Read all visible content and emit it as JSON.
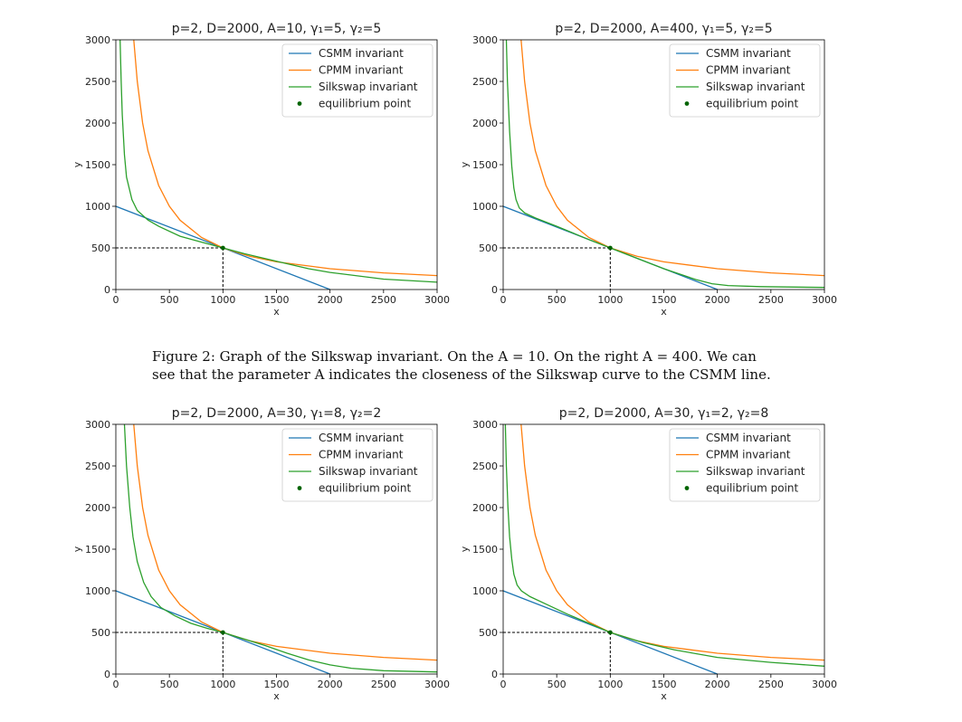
{
  "caption": {
    "line1": "Figure 2: Graph of the Silkswap invariant. On the A = 10. On the right A = 400. We can",
    "line2": "see that the parameter A indicates the closeness of the Silkswap curve to the CSMM line."
  },
  "colors": {
    "csmm": "#1f77b4",
    "cpmm": "#ff7f0e",
    "silkswap": "#2ca02c",
    "equilibrium": "#006400"
  },
  "chart_data": [
    {
      "type": "line",
      "title": "p=2, D=2000, A=10, γ₁=5, γ₂=5",
      "xlabel": "x",
      "ylabel": "y",
      "xlim": [
        0,
        3000
      ],
      "ylim": [
        0,
        3000
      ],
      "xticks": [
        "0",
        "500",
        "1000",
        "1500",
        "2000",
        "2500",
        "3000"
      ],
      "yticks": [
        "0",
        "500",
        "1000",
        "1500",
        "2000",
        "2500",
        "3000"
      ],
      "legend": {
        "placement": "top-right",
        "entries": [
          "CSMM invariant",
          "CPMM invariant",
          "Silkswap invariant",
          "equilibrium point"
        ]
      },
      "equilibrium": {
        "x": 1000,
        "y": 500
      },
      "series": [
        {
          "name": "CSMM invariant",
          "x": [
            0,
            2000
          ],
          "y": [
            1000,
            0
          ]
        },
        {
          "name": "CPMM invariant",
          "x": [
            167,
            200,
            250,
            300,
            400,
            500,
            600,
            800,
            1000,
            1250,
            1500,
            2000,
            2500,
            3000
          ],
          "y": [
            3000,
            2500,
            2000,
            1667,
            1250,
            1000,
            833,
            625,
            500,
            400,
            333,
            250,
            200,
            167
          ]
        },
        {
          "name": "Silkswap invariant",
          "x": [
            40,
            50,
            60,
            80,
            100,
            150,
            200,
            300,
            400,
            600,
            800,
            1000,
            1200,
            1500,
            1800,
            2000,
            2500,
            3000
          ],
          "y": [
            3000,
            2500,
            2100,
            1620,
            1350,
            1080,
            950,
            835,
            760,
            640,
            570,
            500,
            430,
            340,
            250,
            205,
            125,
            88
          ]
        }
      ]
    },
    {
      "type": "line",
      "title": "p=2, D=2000, A=400, γ₁=5, γ₂=5",
      "xlabel": "x",
      "ylabel": "y",
      "xlim": [
        0,
        3000
      ],
      "ylim": [
        0,
        3000
      ],
      "xticks": [
        "0",
        "500",
        "1000",
        "1500",
        "2000",
        "2500",
        "3000"
      ],
      "yticks": [
        "0",
        "500",
        "1000",
        "1500",
        "2000",
        "2500",
        "3000"
      ],
      "legend": {
        "placement": "top-right",
        "entries": [
          "CSMM invariant",
          "CPMM invariant",
          "Silkswap invariant",
          "equilibrium point"
        ]
      },
      "equilibrium": {
        "x": 1000,
        "y": 500
      },
      "series": [
        {
          "name": "CSMM invariant",
          "x": [
            0,
            2000
          ],
          "y": [
            1000,
            0
          ]
        },
        {
          "name": "CPMM invariant",
          "x": [
            167,
            200,
            250,
            300,
            400,
            500,
            600,
            800,
            1000,
            1250,
            1500,
            2000,
            2500,
            3000
          ],
          "y": [
            3000,
            2500,
            2000,
            1667,
            1250,
            1000,
            833,
            625,
            500,
            400,
            333,
            250,
            200,
            167
          ]
        },
        {
          "name": "Silkswap invariant",
          "x": [
            30,
            40,
            60,
            80,
            100,
            120,
            150,
            200,
            300,
            500,
            800,
            1000,
            1500,
            1800,
            1950,
            2100,
            2400,
            3000
          ],
          "y": [
            3000,
            2500,
            1900,
            1480,
            1220,
            1080,
            980,
            920,
            860,
            760,
            600,
            500,
            250,
            120,
            70,
            48,
            35,
            25
          ]
        }
      ]
    },
    {
      "type": "line",
      "title": "p=2, D=2000, A=30, γ₁=8, γ₂=2",
      "xlabel": "x",
      "ylabel": "y",
      "xlim": [
        0,
        3000
      ],
      "ylim": [
        0,
        3000
      ],
      "xticks": [
        "0",
        "500",
        "1000",
        "1500",
        "2000",
        "2500",
        "3000"
      ],
      "yticks": [
        "0",
        "500",
        "1000",
        "1500",
        "2000",
        "2500",
        "3000"
      ],
      "legend": {
        "placement": "top-right",
        "entries": [
          "CSMM invariant",
          "CPMM invariant",
          "Silkswap invariant",
          "equilibrium point"
        ]
      },
      "equilibrium": {
        "x": 1000,
        "y": 500
      },
      "series": [
        {
          "name": "CSMM invariant",
          "x": [
            0,
            2000
          ],
          "y": [
            1000,
            0
          ]
        },
        {
          "name": "CPMM invariant",
          "x": [
            167,
            200,
            250,
            300,
            400,
            500,
            600,
            800,
            1000,
            1250,
            1500,
            2000,
            2500,
            3000
          ],
          "y": [
            3000,
            2500,
            2000,
            1667,
            1250,
            1000,
            833,
            625,
            500,
            400,
            333,
            250,
            200,
            167
          ]
        },
        {
          "name": "Silkswap invariant",
          "x": [
            80,
            100,
            130,
            160,
            200,
            260,
            330,
            420,
            550,
            700,
            850,
            1000,
            1200,
            1400,
            1600,
            1800,
            2000,
            2200,
            2500,
            3000
          ],
          "y": [
            3000,
            2500,
            2000,
            1650,
            1350,
            1100,
            930,
            800,
            700,
            610,
            550,
            500,
            420,
            340,
            250,
            170,
            110,
            70,
            40,
            25
          ]
        }
      ]
    },
    {
      "type": "line",
      "title": "p=2, D=2000, A=30, γ₁=2, γ₂=8",
      "xlabel": "x",
      "ylabel": "y",
      "xlim": [
        0,
        3000
      ],
      "ylim": [
        0,
        3000
      ],
      "xticks": [
        "0",
        "500",
        "1000",
        "1500",
        "2000",
        "2500",
        "3000"
      ],
      "yticks": [
        "0",
        "500",
        "1000",
        "1500",
        "2000",
        "2500",
        "3000"
      ],
      "legend": {
        "placement": "top-right",
        "entries": [
          "CSMM invariant",
          "CPMM invariant",
          "Silkswap invariant",
          "equilibrium point"
        ]
      },
      "equilibrium": {
        "x": 1000,
        "y": 500
      },
      "series": [
        {
          "name": "CSMM invariant",
          "x": [
            0,
            2000
          ],
          "y": [
            1000,
            0
          ]
        },
        {
          "name": "CPMM invariant",
          "x": [
            167,
            200,
            250,
            300,
            400,
            500,
            600,
            800,
            1000,
            1250,
            1500,
            2000,
            2500,
            3000
          ],
          "y": [
            3000,
            2500,
            2000,
            1667,
            1250,
            1000,
            833,
            625,
            500,
            400,
            333,
            250,
            200,
            167
          ]
        },
        {
          "name": "Silkswap invariant",
          "x": [
            20,
            30,
            45,
            60,
            80,
            100,
            130,
            170,
            250,
            400,
            600,
            800,
            1000,
            1300,
            1600,
            2000,
            2500,
            3000
          ],
          "y": [
            3000,
            2500,
            2000,
            1650,
            1380,
            1200,
            1070,
            1000,
            930,
            840,
            720,
            610,
            500,
            380,
            290,
            200,
            140,
            95
          ]
        }
      ]
    }
  ]
}
